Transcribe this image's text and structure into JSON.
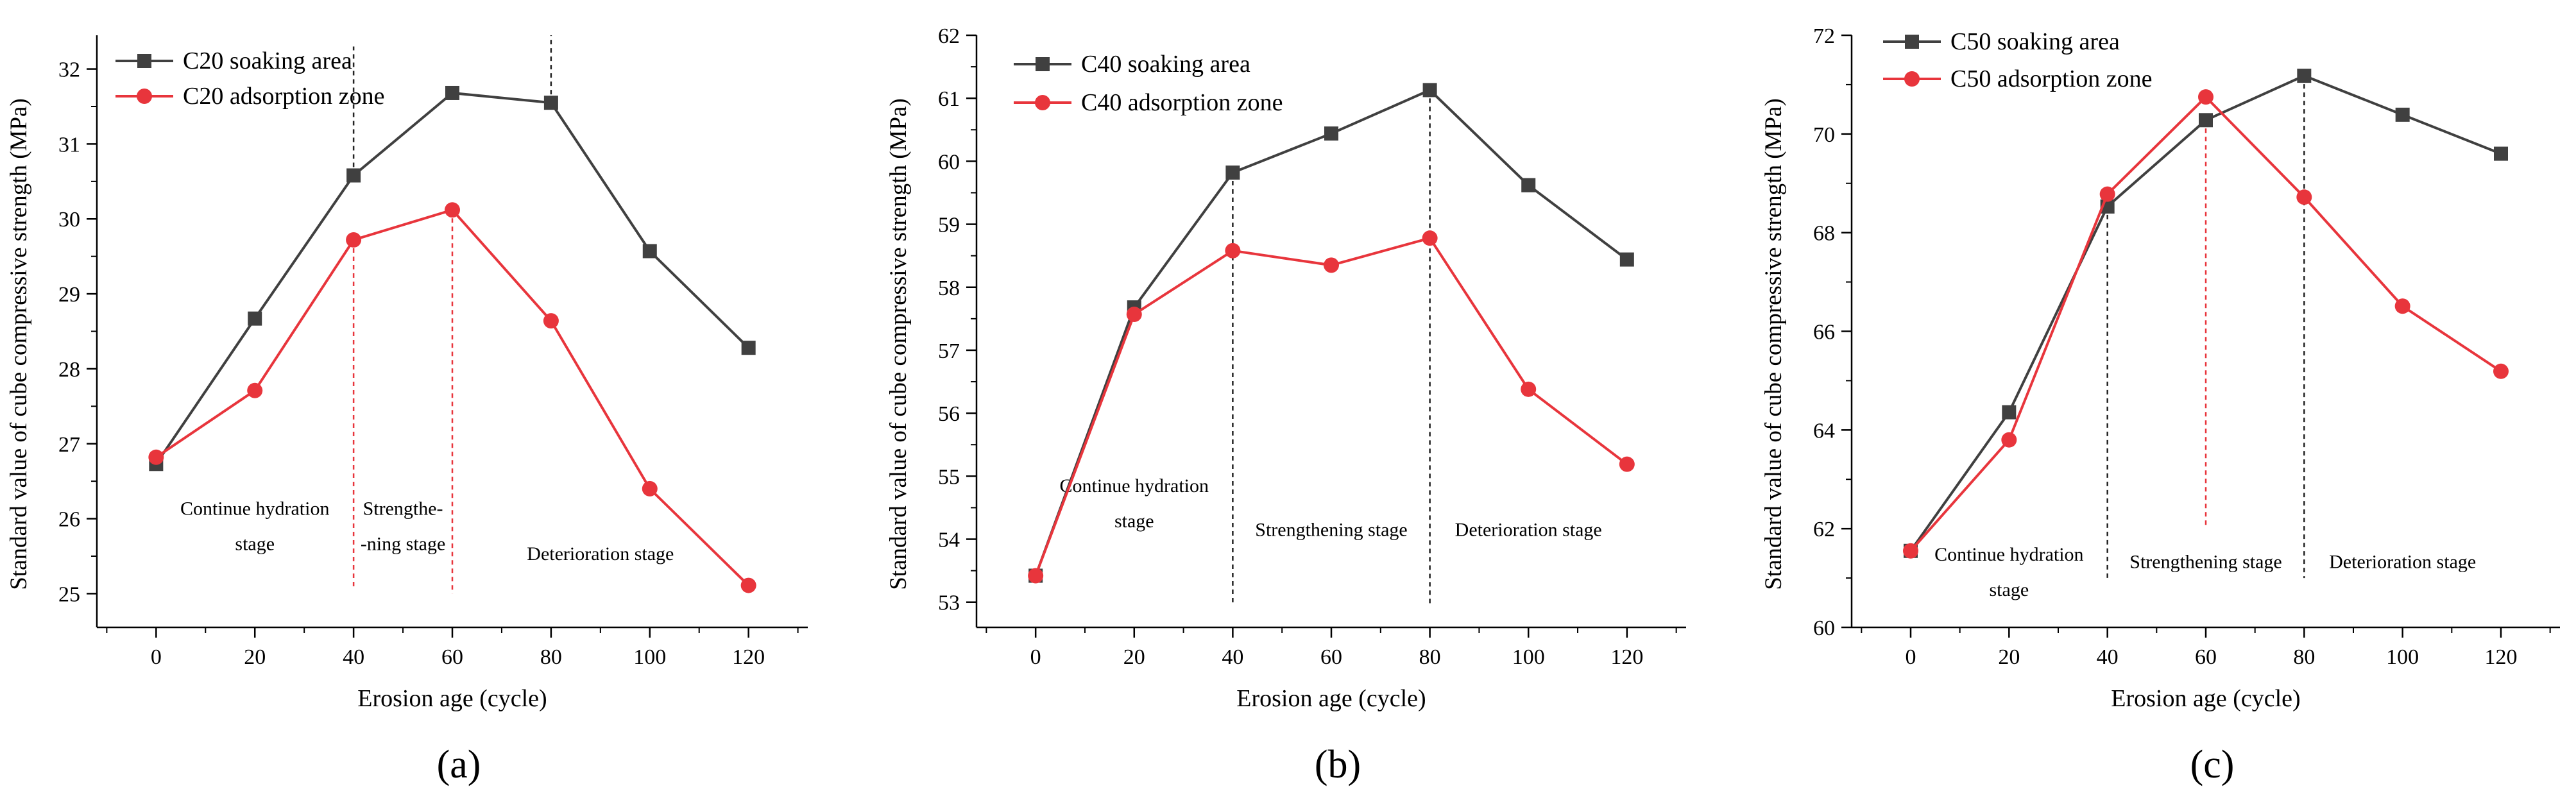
{
  "chart_data": [
    {
      "type": "line",
      "panel_label": "(a)",
      "xlabel": "Erosion age (cycle)",
      "ylabel": "Standard value of cube compressive strength (MPa)",
      "xlim": [
        -12,
        132
      ],
      "ylim": [
        24.55,
        32.45
      ],
      "xticks": [
        0,
        20,
        40,
        60,
        80,
        100,
        120
      ],
      "yticks": [
        25,
        26,
        27,
        28,
        29,
        30,
        31,
        32
      ],
      "x": [
        0,
        20,
        40,
        60,
        80,
        100,
        120
      ],
      "series": [
        {
          "name": "C20 soaking area",
          "color": "#404040",
          "marker": "square",
          "values": [
            26.73,
            28.67,
            30.58,
            31.68,
            31.55,
            29.57,
            28.28
          ]
        },
        {
          "name": "C20 adsorption zone",
          "color": "#e8353c",
          "marker": "circle",
          "values": [
            26.82,
            27.71,
            29.72,
            30.12,
            28.64,
            26.4,
            25.11
          ]
        }
      ],
      "vlines": [
        {
          "x": 40,
          "from": 29.72,
          "to": 25.05,
          "color": "#e8353c"
        },
        {
          "x": 40,
          "from": 30.58,
          "to": 32.3,
          "color": "#222222"
        },
        {
          "x": 60,
          "from": 30.12,
          "to": 25.0,
          "color": "#e8353c"
        },
        {
          "x": 80,
          "from": 31.55,
          "to": 32.45,
          "color": "#222222"
        }
      ],
      "stage_labels": [
        {
          "lines": [
            "Continue hydration",
            "stage"
          ],
          "x": 20,
          "y": 26.05
        },
        {
          "lines": [
            "Strengthe-",
            "-ning stage"
          ],
          "x": 50,
          "y": 26.05
        },
        {
          "lines": [
            "Deterioration stage"
          ],
          "x": 90,
          "y": 25.45
        }
      ]
    },
    {
      "type": "line",
      "panel_label": "(b)",
      "xlabel": "Erosion age (cycle)",
      "ylabel": "Standard value of cube compressive strength (MPa)",
      "xlim": [
        -12,
        132
      ],
      "ylim": [
        52.6,
        62.0
      ],
      "xticks": [
        0,
        20,
        40,
        60,
        80,
        100,
        120
      ],
      "yticks": [
        53,
        54,
        55,
        56,
        57,
        58,
        59,
        60,
        61,
        62
      ],
      "x": [
        0,
        20,
        40,
        60,
        80,
        100,
        120
      ],
      "series": [
        {
          "name": "C40 soaking area",
          "color": "#404040",
          "marker": "square",
          "values": [
            53.42,
            57.68,
            59.82,
            60.44,
            61.13,
            59.62,
            58.44
          ]
        },
        {
          "name": "C40 adsorption zone",
          "color": "#e8353c",
          "marker": "circle",
          "values": [
            53.42,
            57.57,
            58.58,
            58.35,
            58.78,
            56.38,
            55.19
          ]
        }
      ],
      "vlines": [
        {
          "x": 40,
          "from": 59.82,
          "to": 52.95,
          "color": "#222222"
        },
        {
          "x": 80,
          "from": 61.13,
          "to": 52.95,
          "color": "#222222"
        }
      ],
      "stage_labels": [
        {
          "lines": [
            "Continue hydration",
            "stage"
          ],
          "x": 20,
          "y": 54.75
        },
        {
          "lines": [
            "Strengthening stage"
          ],
          "x": 60,
          "y": 54.05
        },
        {
          "lines": [
            "Deterioration stage"
          ],
          "x": 100,
          "y": 54.05
        }
      ]
    },
    {
      "type": "line",
      "panel_label": "(c)",
      "xlabel": "Erosion age (cycle)",
      "ylabel": "Standard value of cube compressive strength (MPa)",
      "xlim": [
        -12,
        132
      ],
      "ylim": [
        60,
        72
      ],
      "xticks": [
        0,
        20,
        40,
        60,
        80,
        100,
        120
      ],
      "yticks": [
        60,
        62,
        64,
        66,
        68,
        70,
        72
      ],
      "x": [
        0,
        20,
        40,
        60,
        80,
        100,
        120
      ],
      "series": [
        {
          "name": "C50 soaking area",
          "color": "#404040",
          "marker": "square",
          "values": [
            61.55,
            64.36,
            68.53,
            70.28,
            71.18,
            70.39,
            69.6
          ]
        },
        {
          "name": "C50 adsorption zone",
          "color": "#e8353c",
          "marker": "circle",
          "values": [
            61.55,
            63.8,
            68.78,
            70.75,
            68.72,
            66.51,
            65.19
          ]
        }
      ],
      "vlines": [
        {
          "x": 40,
          "from": 68.53,
          "to": 61.0,
          "color": "#222222"
        },
        {
          "x": 60,
          "from": 70.28,
          "to": 62.0,
          "color": "#e8353c"
        },
        {
          "x": 80,
          "from": 71.18,
          "to": 61.0,
          "color": "#222222"
        }
      ],
      "stage_labels": [
        {
          "lines": [
            "Continue hydration",
            "stage"
          ],
          "x": 20,
          "y": 61.35
        },
        {
          "lines": [
            "Strengthening stage"
          ],
          "x": 60,
          "y": 61.2
        },
        {
          "lines": [
            "Deterioration stage"
          ],
          "x": 100,
          "y": 61.2
        }
      ]
    }
  ]
}
